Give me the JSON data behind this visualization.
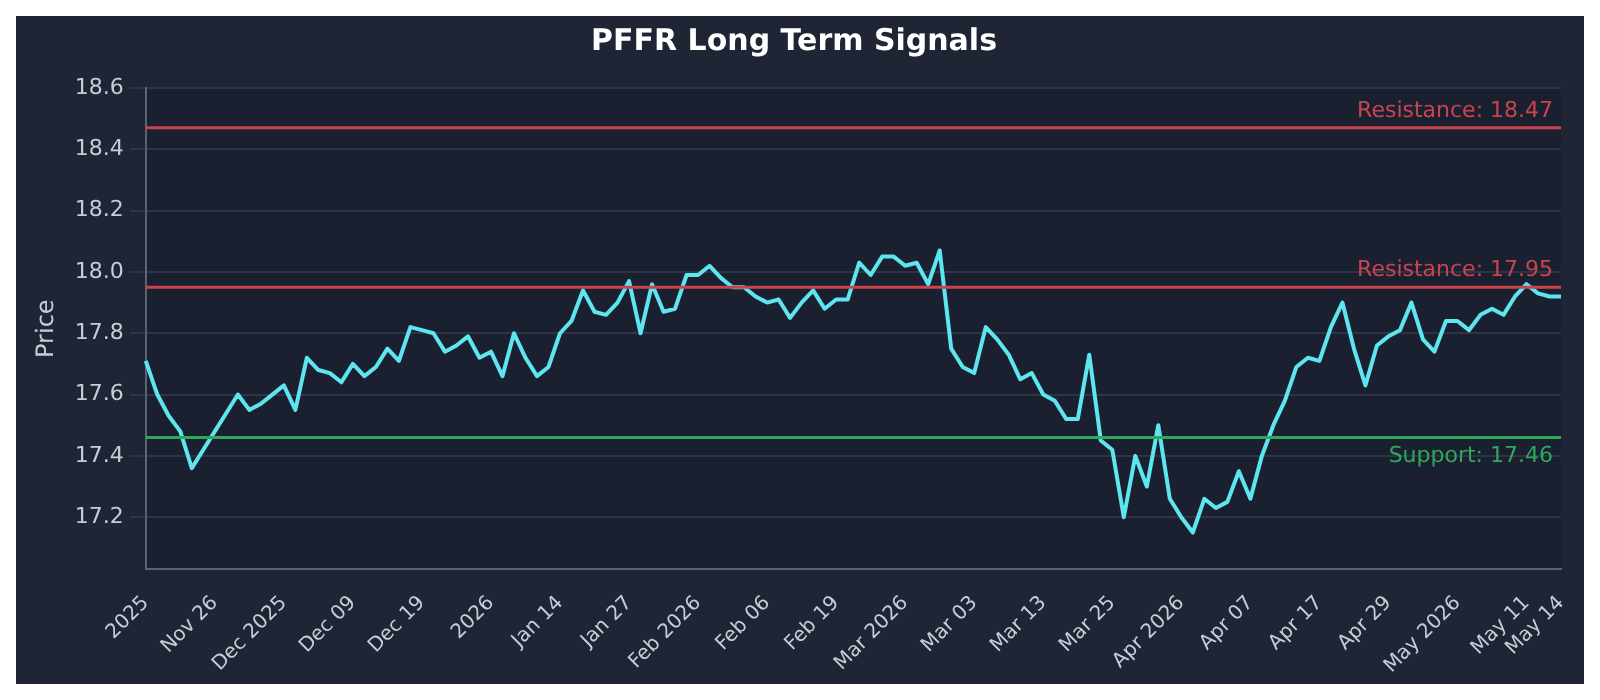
{
  "chart_data": {
    "type": "line",
    "title": "PFFR Long Term Signals",
    "ylabel": "Price",
    "categories": [
      "2025",
      null,
      null,
      null,
      null,
      null,
      "Nov 26",
      null,
      null,
      null,
      null,
      null,
      "Dec 2025",
      null,
      null,
      null,
      null,
      null,
      "Dec 09",
      null,
      null,
      null,
      null,
      null,
      "Dec 19",
      null,
      null,
      null,
      null,
      null,
      "2026",
      null,
      null,
      null,
      null,
      null,
      "Jan 14",
      null,
      null,
      null,
      null,
      null,
      "Jan 27",
      null,
      null,
      null,
      null,
      null,
      "Feb 2026",
      null,
      null,
      null,
      null,
      null,
      "Feb 06",
      null,
      null,
      null,
      null,
      null,
      "Feb 19",
      null,
      null,
      null,
      null,
      null,
      "Mar 2026",
      null,
      null,
      null,
      null,
      null,
      "Mar 03",
      null,
      null,
      null,
      null,
      null,
      "Mar 13",
      null,
      null,
      null,
      null,
      null,
      "Mar 25",
      null,
      null,
      null,
      null,
      null,
      "Apr 2026",
      null,
      null,
      null,
      null,
      null,
      "Apr 07",
      null,
      null,
      null,
      null,
      null,
      "Apr 17",
      null,
      null,
      null,
      null,
      null,
      "Apr 29",
      null,
      null,
      null,
      null,
      null,
      "May 2026",
      null,
      null,
      null,
      null,
      null,
      "May 11",
      null,
      null,
      "May 14"
    ],
    "series": [
      {
        "color": "#5ee6f0",
        "values": [
          17.71,
          17.6,
          17.53,
          17.48,
          17.36,
          17.42,
          17.48,
          17.54,
          17.6,
          17.55,
          17.57,
          17.6,
          17.63,
          17.55,
          17.72,
          17.68,
          17.67,
          17.64,
          17.7,
          17.66,
          17.69,
          17.75,
          17.71,
          17.82,
          17.81,
          17.8,
          17.74,
          17.76,
          17.79,
          17.72,
          17.74,
          17.66,
          17.8,
          17.72,
          17.66,
          17.69,
          17.8,
          17.84,
          17.94,
          17.87,
          17.86,
          17.9,
          17.97,
          17.8,
          17.96,
          17.87,
          17.88,
          17.99,
          17.99,
          18.02,
          17.98,
          17.95,
          17.95,
          17.92,
          17.9,
          17.91,
          17.85,
          17.9,
          17.94,
          17.88,
          17.91,
          17.91,
          18.03,
          17.99,
          18.05,
          18.05,
          18.02,
          18.03,
          17.96,
          18.07,
          17.75,
          17.69,
          17.67,
          17.82,
          17.78,
          17.73,
          17.65,
          17.67,
          17.6,
          17.58,
          17.52,
          17.52,
          17.73,
          17.45,
          17.42,
          17.2,
          17.4,
          17.3,
          17.5,
          17.26,
          17.2,
          17.15,
          17.26,
          17.23,
          17.25,
          17.35,
          17.26,
          17.4,
          17.5,
          17.58,
          17.69,
          17.72,
          17.71,
          17.82,
          17.9,
          17.75,
          17.63,
          17.76,
          17.79,
          17.81,
          17.9,
          17.78,
          17.74,
          17.84,
          17.84,
          17.81,
          17.86,
          17.88,
          17.86,
          17.92,
          17.96,
          17.93,
          17.92,
          17.92
        ]
      }
    ],
    "ylim": [
      17.03,
      18.6
    ],
    "yticks": [
      {
        "value": 17.2,
        "label": "17.2"
      },
      {
        "value": 17.4,
        "label": "17.4"
      },
      {
        "value": 17.6,
        "label": "17.6"
      },
      {
        "value": 17.8,
        "label": "17.8"
      },
      {
        "value": 18.0,
        "label": "18.0"
      },
      {
        "value": 18.2,
        "label": "18.2"
      },
      {
        "value": 18.4,
        "label": "18.4"
      },
      {
        "value": 18.6,
        "label": "18.6"
      }
    ],
    "grid": "y",
    "legend": false,
    "marker": "none",
    "line_style": "solid",
    "ref_lines": [
      {
        "axis": "y",
        "value": 18.47,
        "label": "Resistance: 18.47",
        "color": "#c9444f"
      },
      {
        "axis": "y",
        "value": 17.95,
        "label": "Resistance: 17.95",
        "color": "#c9444f"
      },
      {
        "axis": "y",
        "value": 17.46,
        "label": "Support: 17.46",
        "color": "#2fa85a"
      }
    ]
  }
}
